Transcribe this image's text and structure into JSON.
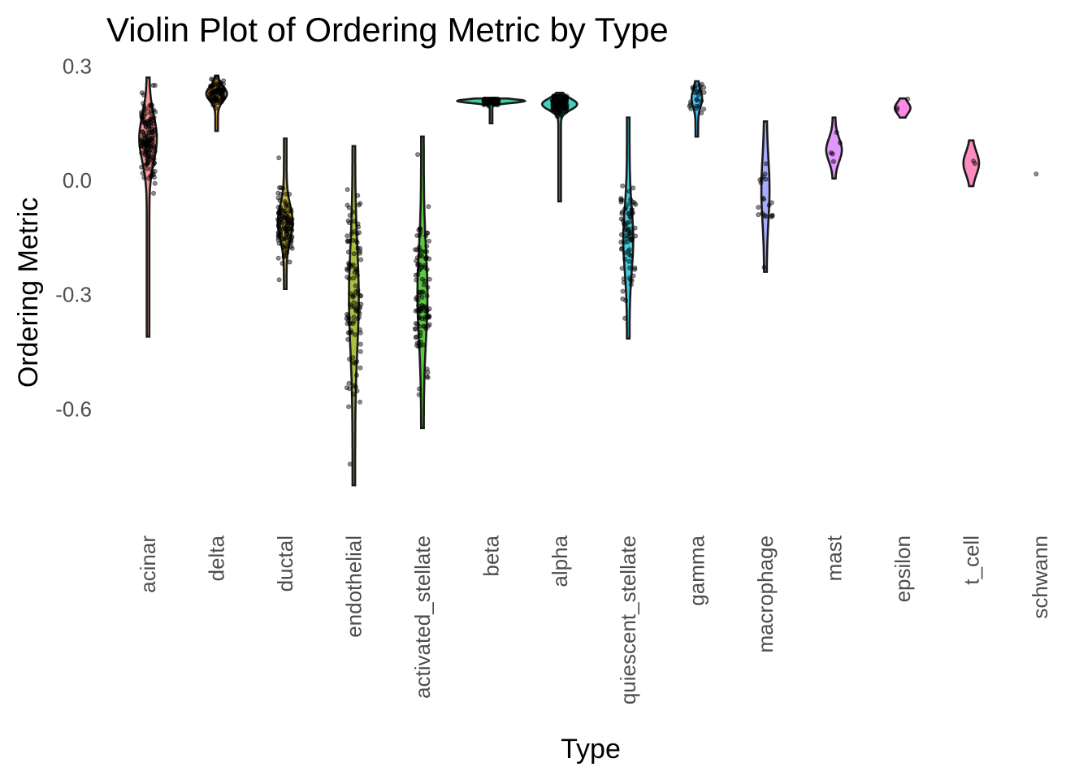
{
  "chart_data": {
    "type": "violin",
    "title": "Violin Plot of Ordering Metric by Type",
    "xlabel": "Type",
    "ylabel": "Ordering Metric",
    "ylim": [
      -0.87,
      0.32
    ],
    "yticks": [
      0.3,
      0.0,
      -0.3,
      -0.6
    ],
    "ytick_labels": [
      "0.3",
      "0.0",
      "-0.3",
      "-0.6"
    ],
    "grid": false,
    "legend": "none",
    "categories": [
      "acinar",
      "delta",
      "ductal",
      "endothelial",
      "activated_stellate",
      "beta",
      "alpha",
      "quiescent_stellate",
      "gamma",
      "macrophage",
      "mast",
      "epsilon",
      "t_cell",
      "schwann"
    ],
    "series": [
      {
        "category": "acinar",
        "color": "#F8766D",
        "min": -0.41,
        "max": 0.27,
        "median": 0.11,
        "iqr": [
          0.07,
          0.15
        ],
        "n": 220
      },
      {
        "category": "delta",
        "color": "#E18A00",
        "min": 0.13,
        "max": 0.275,
        "median": 0.23,
        "iqr": [
          0.215,
          0.24
        ],
        "n": 90
      },
      {
        "category": "ductal",
        "color": "#BE9C00",
        "min": -0.285,
        "max": 0.11,
        "median": -0.11,
        "iqr": [
          -0.14,
          -0.08
        ],
        "n": 120
      },
      {
        "category": "endothelial",
        "color": "#8CAB00",
        "min": -0.8,
        "max": 0.09,
        "median": -0.3,
        "iqr": [
          -0.4,
          -0.22
        ],
        "n": 110
      },
      {
        "category": "activated_stellate",
        "color": "#24B700",
        "min": -0.65,
        "max": 0.115,
        "median": -0.32,
        "iqr": [
          -0.38,
          -0.22
        ],
        "n": 110
      },
      {
        "category": "beta",
        "color": "#00BE70",
        "min": 0.15,
        "max": 0.215,
        "median": 0.21,
        "iqr": [
          0.205,
          0.212
        ],
        "n": 260
      },
      {
        "category": "alpha",
        "color": "#00C1AB",
        "min": -0.055,
        "max": 0.23,
        "median": 0.2,
        "iqr": [
          0.19,
          0.21
        ],
        "n": 150
      },
      {
        "category": "quiescent_stellate",
        "color": "#00BBDA",
        "min": -0.415,
        "max": 0.165,
        "median": -0.16,
        "iqr": [
          -0.21,
          -0.1
        ],
        "n": 75
      },
      {
        "category": "gamma",
        "color": "#00ACFC",
        "min": 0.115,
        "max": 0.26,
        "median": 0.22,
        "iqr": [
          0.2,
          0.23
        ],
        "n": 25
      },
      {
        "category": "macrophage",
        "color": "#8B93FF",
        "min": -0.24,
        "max": 0.155,
        "median": -0.04,
        "iqr": [
          -0.08,
          0.03
        ],
        "n": 20
      },
      {
        "category": "mast",
        "color": "#D575FE",
        "min": 0.005,
        "max": 0.165,
        "median": 0.075,
        "iqr": [
          0.06,
          0.1
        ],
        "n": 5
      },
      {
        "category": "epsilon",
        "color": "#F962DD",
        "min": 0.165,
        "max": 0.215,
        "median": 0.19,
        "iqr": [
          0.18,
          0.2
        ],
        "n": 3
      },
      {
        "category": "t_cell",
        "color": "#FF65AC",
        "min": -0.015,
        "max": 0.105,
        "median": 0.045,
        "iqr": [
          0.025,
          0.065
        ],
        "n": 2
      },
      {
        "category": "schwann",
        "color": "#FF6C91",
        "min": 0.017,
        "max": 0.017,
        "median": 0.017,
        "iqr": [
          0.017,
          0.017
        ],
        "n": 1
      }
    ]
  }
}
